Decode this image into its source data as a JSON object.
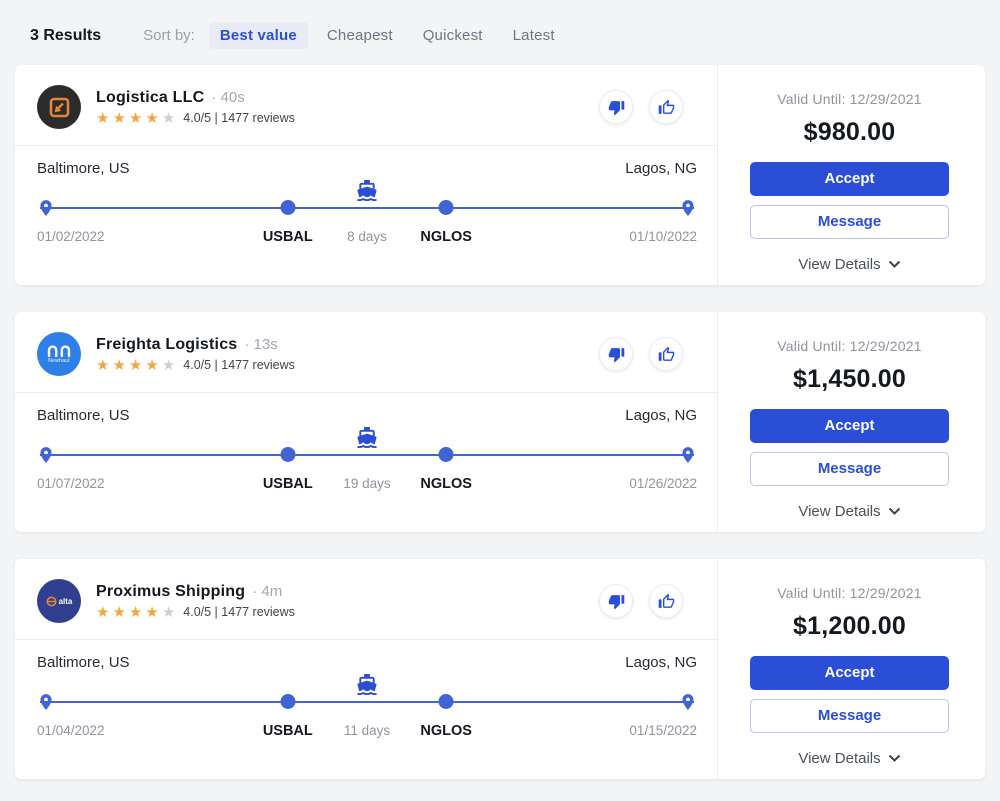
{
  "header": {
    "results_count": "3 Results",
    "sort_label": "Sort by:",
    "sort_options": [
      {
        "label": "Best value",
        "active": true
      },
      {
        "label": "Cheapest",
        "active": false
      },
      {
        "label": "Quickest",
        "active": false
      },
      {
        "label": "Latest",
        "active": false
      }
    ]
  },
  "colors": {
    "accent": "#2b4ed6",
    "timeline_blue": "#4064d4",
    "star_gold": "#f1a83d",
    "page_bg": "#f3f4f6"
  },
  "cards": [
    {
      "company": "Logistica LLC",
      "time_badge": "· 40s",
      "stars_filled": 4,
      "stars_total": 5,
      "rating_text": "4.0/5 | 1477 reviews",
      "origin_city": "Baltimore, US",
      "destination_city": "Lagos, NG",
      "departure_date": "01/02/2022",
      "arrival_date": "01/10/2022",
      "origin_port": "USBAL",
      "destination_port": "NGLOS",
      "duration": "8 days",
      "valid_until": "Valid Until: 12/29/2021",
      "price": "$980.00",
      "accept_label": "Accept",
      "message_label": "Message",
      "view_details_label": "View Details",
      "logo": {
        "style": "logistica",
        "text": ""
      }
    },
    {
      "company": "Freighta Logistics",
      "time_badge": "· 13s",
      "stars_filled": 4,
      "stars_total": 5,
      "rating_text": "4.0/5 | 1477 reviews",
      "origin_city": "Baltimore, US",
      "destination_city": "Lagos, NG",
      "departure_date": "01/07/2022",
      "arrival_date": "01/26/2022",
      "origin_port": "USBAL",
      "destination_port": "NGLOS",
      "duration": "19 days",
      "valid_until": "Valid Until: 12/29/2021",
      "price": "$1,450.00",
      "accept_label": "Accept",
      "message_label": "Message",
      "view_details_label": "View Details",
      "logo": {
        "style": "newhaul",
        "text": "Newhaul"
      }
    },
    {
      "company": "Proximus Shipping",
      "time_badge": "· 4m",
      "stars_filled": 4,
      "stars_total": 5,
      "rating_text": "4.0/5 | 1477 reviews",
      "origin_city": "Baltimore, US",
      "destination_city": "Lagos, NG",
      "departure_date": "01/04/2022",
      "arrival_date": "01/15/2022",
      "origin_port": "USBAL",
      "destination_port": "NGLOS",
      "duration": "11 days",
      "valid_until": "Valid Until: 12/29/2021",
      "price": "$1,200.00",
      "accept_label": "Accept",
      "message_label": "Message",
      "view_details_label": "View Details",
      "logo": {
        "style": "alta",
        "text": "alta"
      }
    }
  ]
}
